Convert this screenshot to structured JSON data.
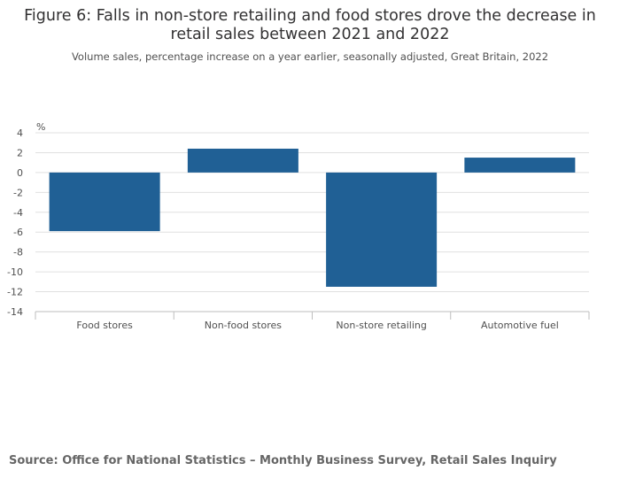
{
  "chart_data": {
    "type": "bar",
    "title_lines": [
      "Figure 6: Falls in non-store retailing and food stores drove the decrease in",
      "retail sales between 2021 and 2022"
    ],
    "subtitle": "Volume sales, percentage increase on a year earlier, seasonally adjusted, Great Britain, 2022",
    "ylabel": "%",
    "xlabel": "",
    "categories": [
      "Food stores",
      "Non-food stores",
      "Non-store retailing",
      "Automotive fuel"
    ],
    "values": [
      -5.9,
      2.4,
      -11.5,
      1.5
    ],
    "ylim": [
      -14,
      4
    ],
    "yticks": [
      4,
      2,
      0,
      -2,
      -4,
      -6,
      -8,
      -10,
      -12,
      -14
    ],
    "ytick_labels": [
      "4",
      "2",
      "0",
      "-2",
      "-4",
      "-6",
      "-8",
      "-10",
      "-12",
      "-14"
    ],
    "bar_color": "#206095",
    "grid": true,
    "legend": "none"
  },
  "source": "Source: Office for National Statistics – Monthly Business Survey, Retail Sales Inquiry",
  "colors": {
    "bar": "#206095",
    "grid": "#e0e0e0",
    "axis": "#bebebe"
  }
}
